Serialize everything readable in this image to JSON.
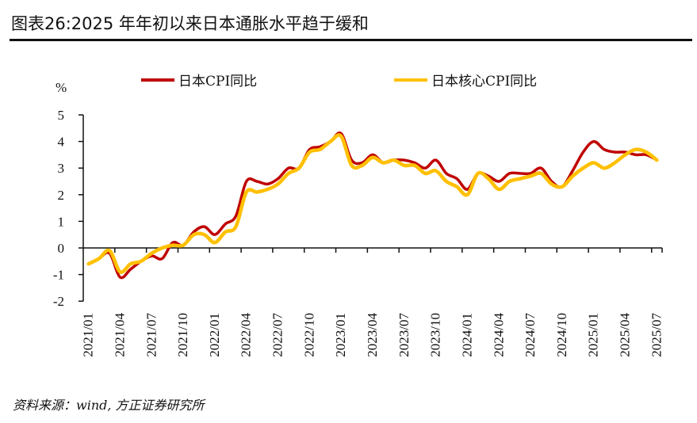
{
  "title": "图表26:2025 年年初以来日本通胀水平趋于缓和",
  "source": "资料来源：wind, 方正证券研究所",
  "chart_data": {
    "type": "line",
    "title": "图表26:2025 年年初以来日本通胀水平趋于缓和",
    "ylabel": "%",
    "ylim": [
      -2,
      5
    ],
    "yticks": [
      -2,
      -1,
      0,
      1,
      2,
      3,
      4,
      5
    ],
    "grid": false,
    "legend_position": "top",
    "x": [
      "2021/01",
      "2021/02",
      "2021/03",
      "2021/04",
      "2021/05",
      "2021/06",
      "2021/07",
      "2021/08",
      "2021/09",
      "2021/10",
      "2021/11",
      "2021/12",
      "2022/01",
      "2022/02",
      "2022/03",
      "2022/04",
      "2022/05",
      "2022/06",
      "2022/07",
      "2022/08",
      "2022/09",
      "2022/10",
      "2022/11",
      "2022/12",
      "2023/01",
      "2023/02",
      "2023/03",
      "2023/04",
      "2023/05",
      "2023/06",
      "2023/07",
      "2023/08",
      "2023/09",
      "2023/10",
      "2023/11",
      "2023/12",
      "2024/01",
      "2024/02",
      "2024/03",
      "2024/04",
      "2024/05",
      "2024/06",
      "2024/07",
      "2024/08",
      "2024/09",
      "2024/10",
      "2024/11",
      "2024/12",
      "2025/01",
      "2025/02",
      "2025/03",
      "2025/04",
      "2025/05",
      "2025/06",
      "2025/07"
    ],
    "xticks": [
      "2021/01",
      "2021/04",
      "2021/07",
      "2021/10",
      "2022/01",
      "2022/04",
      "2022/07",
      "2022/10",
      "2023/01",
      "2023/04",
      "2023/07",
      "2023/10",
      "2024/01",
      "2024/04",
      "2024/07",
      "2024/10",
      "2025/01",
      "2025/04",
      "2025/07"
    ],
    "series": [
      {
        "name": "日本CPI同比",
        "color": "#C00000",
        "values": [
          -0.6,
          -0.4,
          -0.2,
          -1.1,
          -0.8,
          -0.5,
          -0.3,
          -0.4,
          0.2,
          0.1,
          0.6,
          0.8,
          0.5,
          0.9,
          1.2,
          2.5,
          2.5,
          2.4,
          2.6,
          3.0,
          3.0,
          3.7,
          3.8,
          4.0,
          4.3,
          3.3,
          3.2,
          3.5,
          3.2,
          3.3,
          3.3,
          3.2,
          3.0,
          3.3,
          2.8,
          2.6,
          2.2,
          2.8,
          2.7,
          2.5,
          2.8,
          2.8,
          2.8,
          3.0,
          2.5,
          2.3,
          2.9,
          3.6,
          4.0,
          3.7,
          3.6,
          3.6,
          3.5,
          3.5,
          3.3
        ]
      },
      {
        "name": "日本核心CPI同比",
        "color": "#FFC000",
        "values": [
          -0.6,
          -0.4,
          -0.1,
          -0.9,
          -0.6,
          -0.5,
          -0.2,
          0.0,
          0.1,
          0.1,
          0.5,
          0.5,
          0.2,
          0.6,
          0.8,
          2.1,
          2.1,
          2.2,
          2.4,
          2.8,
          3.0,
          3.6,
          3.7,
          4.0,
          4.2,
          3.1,
          3.1,
          3.4,
          3.2,
          3.3,
          3.1,
          3.1,
          2.8,
          2.9,
          2.5,
          2.3,
          2.0,
          2.8,
          2.6,
          2.2,
          2.5,
          2.6,
          2.7,
          2.8,
          2.4,
          2.3,
          2.7,
          3.0,
          3.2,
          3.0,
          3.2,
          3.5,
          3.7,
          3.6,
          3.3
        ]
      }
    ]
  }
}
